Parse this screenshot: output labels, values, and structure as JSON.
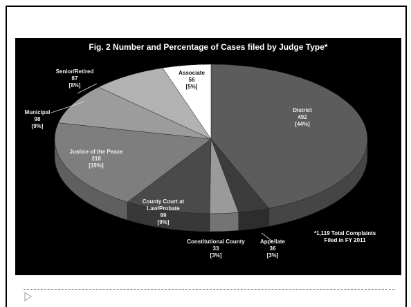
{
  "chart_data": {
    "type": "pie",
    "title": "Fig. 2 Number and Percentage of Cases filed by Judge Type*",
    "categories": [
      "District",
      "Appellate",
      "Constitutional County",
      "County Court at Law/Probate",
      "Justice of the Peace",
      "Municipal",
      "Senior/Retired",
      "Associate"
    ],
    "values": [
      492,
      36,
      33,
      99,
      218,
      98,
      87,
      56
    ],
    "percent_labels": [
      "[44%]",
      "[3%]",
      "[3%]",
      "[9%]",
      "[19%]",
      "[9%]",
      "[8%]",
      "[5%]"
    ],
    "colors": [
      "#5c5c5c",
      "#3c3c3c",
      "#9a9a9a",
      "#4a4a4a",
      "#7e7e7e",
      "#9c9c9c",
      "#b2b2b2",
      "#ffffff"
    ],
    "annotation": [
      "*1,119 Total Complaints",
      "Filed in FY 2011"
    ]
  }
}
